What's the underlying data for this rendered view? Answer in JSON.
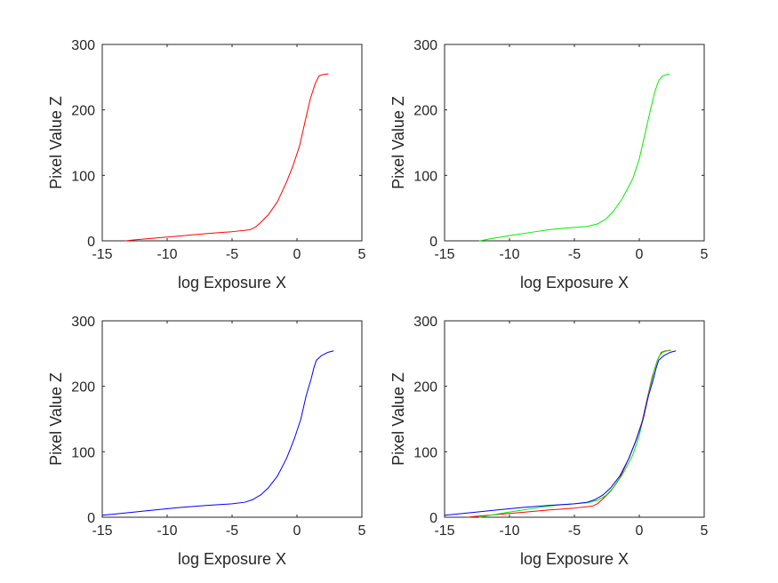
{
  "chart_data": [
    {
      "type": "line",
      "xlabel": "log Exposure X",
      "ylabel": "Pixel Value Z",
      "xlim": [
        -15,
        5
      ],
      "ylim": [
        0,
        300
      ],
      "xticks": [
        -15,
        -10,
        -5,
        0,
        5
      ],
      "yticks": [
        0,
        100,
        200,
        300
      ],
      "series": [
        {
          "color": "#ff0000",
          "points": [
            [
              -13.2,
              0
            ],
            [
              -12.5,
              1.5
            ],
            [
              -11,
              4
            ],
            [
              -9,
              7.5
            ],
            [
              -7,
              11
            ],
            [
              -5,
              14
            ],
            [
              -3.6,
              17
            ],
            [
              -3.2,
              21
            ],
            [
              -2.8,
              28
            ],
            [
              -2.2,
              40
            ],
            [
              -1.5,
              60
            ],
            [
              -0.8,
              90
            ],
            [
              -0.3,
              115
            ],
            [
              0.2,
              145
            ],
            [
              0.6,
              180
            ],
            [
              1,
              215
            ],
            [
              1.4,
              240
            ],
            [
              1.7,
              252
            ],
            [
              2.0,
              254
            ],
            [
              2.4,
              255
            ]
          ]
        }
      ]
    },
    {
      "type": "line",
      "xlabel": "log Exposure X",
      "ylabel": "Pixel Value Z",
      "xlim": [
        -15,
        5
      ],
      "ylim": [
        0,
        300
      ],
      "xticks": [
        -15,
        -10,
        -5,
        0,
        5
      ],
      "yticks": [
        0,
        100,
        200,
        300
      ],
      "series": [
        {
          "color": "#00ee00",
          "points": [
            [
              -12.3,
              0
            ],
            [
              -11.5,
              3
            ],
            [
              -10,
              8
            ],
            [
              -8,
              14
            ],
            [
              -7,
              17
            ],
            [
              -6,
              19
            ],
            [
              -4,
              22
            ],
            [
              -3.2,
              26
            ],
            [
              -2.6,
              33
            ],
            [
              -2,
              45
            ],
            [
              -1.3,
              65
            ],
            [
              -0.5,
              95
            ],
            [
              0,
              125
            ],
            [
              0.4,
              160
            ],
            [
              0.8,
              195
            ],
            [
              1.2,
              228
            ],
            [
              1.5,
              245
            ],
            [
              1.8,
              252
            ],
            [
              2.3,
              255
            ]
          ]
        }
      ]
    },
    {
      "type": "line",
      "xlabel": "log Exposure X",
      "ylabel": "Pixel Value Z",
      "xlim": [
        -15,
        5
      ],
      "ylim": [
        0,
        300
      ],
      "xticks": [
        -15,
        -10,
        -5,
        0,
        5
      ],
      "yticks": [
        0,
        100,
        200,
        300
      ],
      "series": [
        {
          "color": "#0000ff",
          "points": [
            [
              -15,
              3
            ],
            [
              -13,
              7
            ],
            [
              -11,
              11
            ],
            [
              -9,
              15
            ],
            [
              -7,
              18
            ],
            [
              -5,
              20.5
            ],
            [
              -4,
              23
            ],
            [
              -3.4,
              27
            ],
            [
              -2.8,
              34
            ],
            [
              -2.2,
              45
            ],
            [
              -1.5,
              63
            ],
            [
              -0.8,
              90
            ],
            [
              -0.2,
              120
            ],
            [
              0.3,
              150
            ],
            [
              0.7,
              185
            ],
            [
              1.1,
              212
            ],
            [
              1.3,
              228
            ],
            [
              1.5,
              240
            ],
            [
              1.9,
              247
            ],
            [
              2.4,
              252
            ],
            [
              2.8,
              254
            ]
          ]
        }
      ]
    },
    {
      "type": "line",
      "xlabel": "log Exposure X",
      "ylabel": "Pixel Value Z",
      "xlim": [
        -15,
        5
      ],
      "ylim": [
        0,
        300
      ],
      "xticks": [
        -15,
        -10,
        -5,
        0,
        5
      ],
      "yticks": [
        0,
        100,
        200,
        300
      ],
      "series": [
        {
          "color": "#ff0000",
          "points": [
            [
              -13.2,
              0
            ],
            [
              -12.5,
              1.5
            ],
            [
              -11,
              4
            ],
            [
              -9,
              7.5
            ],
            [
              -7,
              11
            ],
            [
              -5,
              14
            ],
            [
              -3.6,
              17
            ],
            [
              -3.2,
              21
            ],
            [
              -2.8,
              28
            ],
            [
              -2.2,
              40
            ],
            [
              -1.5,
              60
            ],
            [
              -0.8,
              90
            ],
            [
              -0.3,
              115
            ],
            [
              0.2,
              145
            ],
            [
              0.6,
              180
            ],
            [
              1,
              215
            ],
            [
              1.4,
              240
            ],
            [
              1.7,
              252
            ],
            [
              2.0,
              254
            ],
            [
              2.4,
              255
            ]
          ]
        },
        {
          "color": "#00ee00",
          "points": [
            [
              -12.3,
              0
            ],
            [
              -11.5,
              3
            ],
            [
              -10,
              8
            ],
            [
              -8,
              14
            ],
            [
              -7,
              17
            ],
            [
              -6,
              19
            ],
            [
              -4,
              22
            ],
            [
              -3.2,
              26
            ],
            [
              -2.6,
              33
            ],
            [
              -2,
              45
            ],
            [
              -1.3,
              65
            ],
            [
              -0.5,
              95
            ],
            [
              0,
              125
            ],
            [
              0.4,
              160
            ],
            [
              0.8,
              195
            ],
            [
              1.2,
              228
            ],
            [
              1.5,
              245
            ],
            [
              1.8,
              252
            ],
            [
              2.3,
              255
            ]
          ]
        },
        {
          "color": "#0000ff",
          "points": [
            [
              -15,
              3
            ],
            [
              -13,
              7
            ],
            [
              -11,
              11
            ],
            [
              -9,
              15
            ],
            [
              -7,
              18
            ],
            [
              -5,
              20.5
            ],
            [
              -4,
              23
            ],
            [
              -3.4,
              27
            ],
            [
              -2.8,
              34
            ],
            [
              -2.2,
              45
            ],
            [
              -1.5,
              63
            ],
            [
              -0.8,
              90
            ],
            [
              -0.2,
              120
            ],
            [
              0.3,
              150
            ],
            [
              0.7,
              185
            ],
            [
              1.1,
              212
            ],
            [
              1.3,
              228
            ],
            [
              1.5,
              240
            ],
            [
              1.9,
              247
            ],
            [
              2.4,
              252
            ],
            [
              2.8,
              254
            ]
          ]
        }
      ]
    }
  ]
}
